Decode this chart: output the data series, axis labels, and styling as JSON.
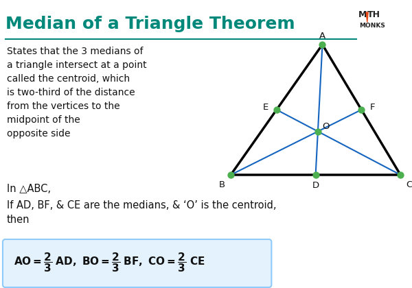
{
  "title": "Median of a Triangle Theorem",
  "title_color": "#00897B",
  "bg_color": "#FFFFFF",
  "description": "States that the 3 medians of\na triangle intersect at a point\ncalled the centroid, which\nis two-third of the distance\nfrom the vertices to the\nmidpoint of the\nopposite side",
  "in_text": "In △ABC,",
  "if_text": "If AD, BF, & CE are the medians, & ‘O’ is the centroid,\nthen",
  "triangle_color": "#000000",
  "median_color": "#1565C0",
  "point_color": "#4CAF50",
  "point_size": 55,
  "triangle_lw": 2.5,
  "median_lw": 1.5,
  "logo_triangle_color": "#E64A19",
  "formula_box_color": "#E3F2FD",
  "formula_box_edge": "#90CAF9",
  "A": [
    4.75,
    3.55
  ],
  "B": [
    3.4,
    1.65
  ],
  "C": [
    5.9,
    1.65
  ]
}
